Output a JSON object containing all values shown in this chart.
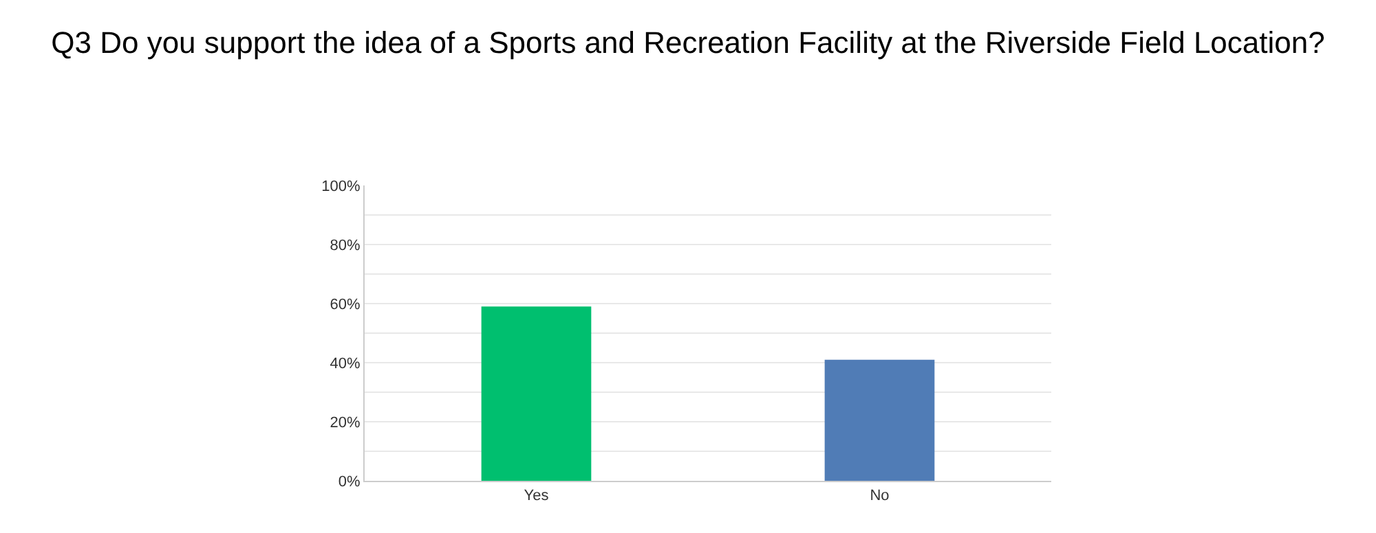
{
  "chart_data": {
    "type": "bar",
    "title": "Q3 Do you support the idea of a Sports and Recreation Facility at the Riverside Field Location?",
    "categories": [
      "Yes",
      "No"
    ],
    "values": [
      59,
      41
    ],
    "colors": [
      "#00bf6f",
      "#507cb6"
    ],
    "ylim": [
      0,
      100
    ],
    "yticks": [
      {
        "value": 0,
        "label": "0%"
      },
      {
        "value": 10,
        "label": null
      },
      {
        "value": 20,
        "label": "20%"
      },
      {
        "value": 30,
        "label": null
      },
      {
        "value": 40,
        "label": "40%"
      },
      {
        "value": 50,
        "label": null
      },
      {
        "value": 60,
        "label": "60%"
      },
      {
        "value": 70,
        "label": null
      },
      {
        "value": 80,
        "label": "80%"
      },
      {
        "value": 90,
        "label": null
      },
      {
        "value": 100,
        "label": "100%"
      }
    ],
    "grid": "y"
  }
}
